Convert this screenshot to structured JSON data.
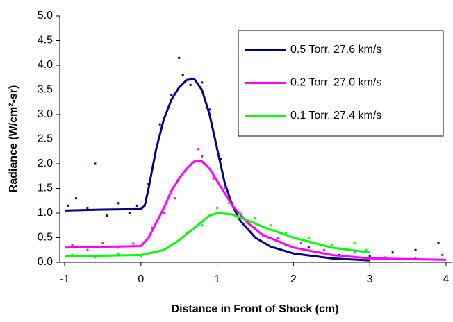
{
  "chart_data": {
    "type": "line",
    "xlabel": "Distance in Front of Shock (cm)",
    "ylabel": "Radiance (W/cm²-sr)",
    "xlim": [
      -1,
      4
    ],
    "xticks": [
      -1,
      0,
      1,
      2,
      3,
      4
    ],
    "ylim": [
      0,
      5
    ],
    "yticks": [
      {
        "value": 0,
        "label": "0.0"
      },
      {
        "value": 0.5,
        "label": "0.5"
      },
      {
        "value": 1,
        "label": "1.0"
      },
      {
        "value": 1.5,
        "label": "1.5"
      },
      {
        "value": 2,
        "label": "2.0"
      },
      {
        "value": 2.5,
        "label": "2.5"
      },
      {
        "value": 3,
        "label": "3.0"
      },
      {
        "value": 3.5,
        "label": "3.5"
      },
      {
        "value": 4,
        "label": "4.0"
      },
      {
        "value": 4.5,
        "label": "4.5"
      },
      {
        "value": 5,
        "label": "5.0"
      }
    ],
    "grid": false,
    "legend": "upper right",
    "series": [
      {
        "name": "0.5 Torr, 27.6 km/s",
        "color": "#000080",
        "x": [
          -1,
          -0.5,
          0,
          0.05,
          0.1,
          0.2,
          0.3,
          0.4,
          0.5,
          0.6,
          0.7,
          0.8,
          0.9,
          1.0,
          1.1,
          1.2,
          1.3,
          1.5,
          1.7,
          2.0,
          2.5,
          3.0
        ],
        "values": [
          1.05,
          1.07,
          1.08,
          1.15,
          1.5,
          2.3,
          2.9,
          3.3,
          3.55,
          3.7,
          3.72,
          3.5,
          3.0,
          2.3,
          1.6,
          1.15,
          0.85,
          0.5,
          0.32,
          0.18,
          0.08,
          0.04
        ],
        "scatter": {
          "x": [
            -0.95,
            -0.85,
            -0.7,
            -0.6,
            -0.45,
            -0.3,
            -0.15,
            -0.05,
            0.1,
            0.25,
            0.4,
            0.5,
            0.55,
            0.65,
            0.8,
            0.9,
            1.05,
            1.2,
            1.4,
            1.6,
            1.9,
            2.2,
            2.6,
            3.0,
            3.3,
            3.6,
            3.9
          ],
          "y": [
            1.15,
            1.3,
            1.1,
            2.0,
            0.95,
            1.2,
            1.0,
            1.15,
            1.6,
            2.8,
            3.4,
            4.15,
            3.8,
            3.6,
            3.65,
            3.1,
            2.1,
            1.2,
            0.8,
            0.55,
            0.35,
            0.3,
            0.15,
            0.12,
            0.2,
            0.25,
            0.4
          ]
        }
      },
      {
        "name": "0.2 Torr, 27.0 km/s",
        "color": "#ff00ff",
        "x": [
          -1,
          0,
          0.1,
          0.2,
          0.3,
          0.4,
          0.5,
          0.6,
          0.7,
          0.8,
          0.9,
          1.0,
          1.1,
          1.2,
          1.4,
          1.6,
          2.0,
          2.5,
          3.0,
          4.0
        ],
        "values": [
          0.3,
          0.33,
          0.5,
          0.8,
          1.1,
          1.45,
          1.7,
          1.9,
          2.05,
          2.05,
          1.9,
          1.65,
          1.4,
          1.15,
          0.8,
          0.55,
          0.3,
          0.15,
          0.08,
          0.05
        ],
        "scatter": {
          "x": [
            -0.9,
            -0.7,
            -0.5,
            -0.3,
            -0.1,
            0.15,
            0.3,
            0.45,
            0.6,
            0.75,
            0.8,
            0.95,
            1.1,
            1.3,
            1.5,
            1.8,
            2.1,
            2.4,
            2.8,
            3.2,
            3.6,
            3.95
          ],
          "y": [
            0.35,
            0.25,
            0.4,
            0.3,
            0.38,
            0.7,
            1.0,
            1.3,
            1.9,
            2.3,
            2.15,
            1.7,
            1.5,
            1.0,
            0.7,
            0.5,
            0.4,
            0.25,
            0.2,
            0.1,
            0.08,
            0.15
          ]
        }
      },
      {
        "name": "0.1 Torr, 27.4 km/s",
        "color": "#00ff00",
        "x": [
          -1,
          0,
          0.3,
          0.5,
          0.7,
          0.9,
          1.0,
          1.2,
          1.4,
          1.6,
          2.0,
          2.5,
          3.0
        ],
        "values": [
          0.12,
          0.15,
          0.25,
          0.45,
          0.7,
          0.95,
          1.0,
          0.97,
          0.85,
          0.72,
          0.5,
          0.3,
          0.2
        ],
        "scatter": {
          "x": [
            -0.9,
            -0.6,
            -0.3,
            0.0,
            0.2,
            0.4,
            0.6,
            0.8,
            1.0,
            1.15,
            1.3,
            1.5,
            1.7,
            1.9,
            2.2,
            2.5,
            2.8,
            2.95
          ],
          "y": [
            0.15,
            0.1,
            0.18,
            0.12,
            0.2,
            0.35,
            0.6,
            0.75,
            1.1,
            1.2,
            1.0,
            0.9,
            0.75,
            0.6,
            0.5,
            0.35,
            0.4,
            0.25
          ]
        }
      }
    ]
  }
}
